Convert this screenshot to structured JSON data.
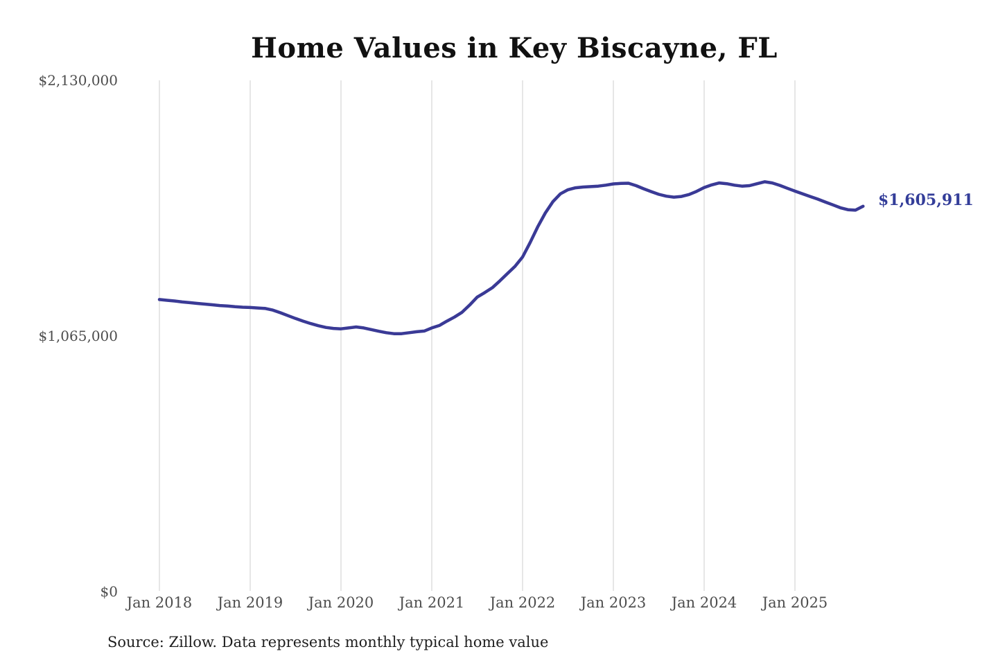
{
  "page": {
    "source_note": "Source: Zillow. Data represents monthly typical home value"
  },
  "chart_data": {
    "type": "line",
    "title": "Home Values in Key Biscayne, FL",
    "xlabel": "",
    "ylabel": "",
    "ylim": [
      0,
      2130000
    ],
    "grid": "vertical-only",
    "grid_color": "#cccccc",
    "line_color": "#3a3a96",
    "end_label": "$1,605,911",
    "end_value": 1605911,
    "legend": "none",
    "x_tick_labels": [
      "Jan 2018",
      "Jan 2019",
      "Jan 2020",
      "Jan 2021",
      "Jan 2022",
      "Jan 2023",
      "Jan 2024",
      "Jan 2025"
    ],
    "y_ticks": [
      {
        "label": "$2,130,000",
        "value": 2130000
      },
      {
        "label": "$1,065,000",
        "value": 1065000
      },
      {
        "label": "$0",
        "value": 0
      }
    ],
    "series": [
      {
        "name": "Monthly typical home value",
        "x_start": "2018-01",
        "frequency": "monthly",
        "values": [
          1218000,
          1215000,
          1212000,
          1208000,
          1205000,
          1202000,
          1199000,
          1196000,
          1193000,
          1191000,
          1188000,
          1186000,
          1185000,
          1183000,
          1181000,
          1174000,
          1163000,
          1151000,
          1139000,
          1128000,
          1118000,
          1109000,
          1102000,
          1098000,
          1096000,
          1100000,
          1104000,
          1100000,
          1093000,
          1086000,
          1080000,
          1076000,
          1076000,
          1080000,
          1084000,
          1087000,
          1100000,
          1110000,
          1128000,
          1145000,
          1165000,
          1195000,
          1228000,
          1247000,
          1267000,
          1296000,
          1326000,
          1356000,
          1395000,
          1455000,
          1520000,
          1578000,
          1625000,
          1658000,
          1675000,
          1683000,
          1686000,
          1688000,
          1690000,
          1694000,
          1699000,
          1701000,
          1702000,
          1692000,
          1679000,
          1667000,
          1656000,
          1648000,
          1644000,
          1647000,
          1655000,
          1668000,
          1684000,
          1695000,
          1703000,
          1700000,
          1694000,
          1690000,
          1692000,
          1700000,
          1708000,
          1703000,
          1693000,
          1681000,
          1669000,
          1658000,
          1647000,
          1636000,
          1624000,
          1612000,
          1600000,
          1592000,
          1590000,
          1605911
        ]
      }
    ]
  }
}
